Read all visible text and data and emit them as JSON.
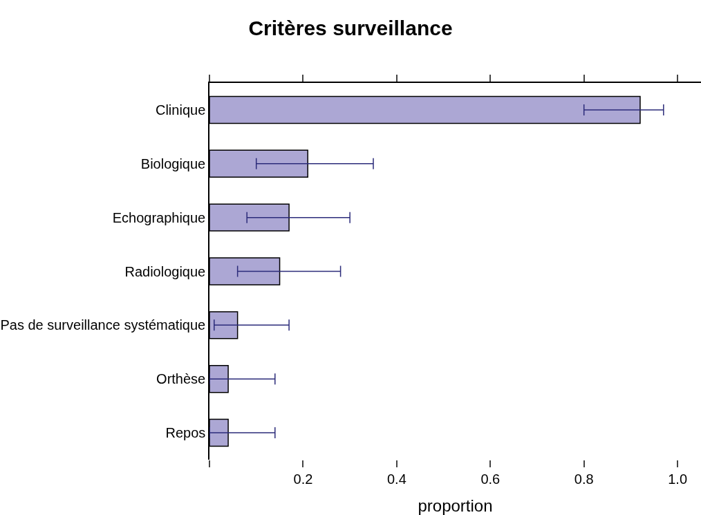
{
  "chart_data": {
    "type": "bar",
    "orientation": "horizontal",
    "title": "Critères surveillance",
    "xlabel": "proportion",
    "categories": [
      "Clinique",
      "Biologique",
      "Echographique",
      "Radiologique",
      "Pas de surveillance systématique",
      "Orthèse",
      "Repos"
    ],
    "values": [
      0.92,
      0.21,
      0.17,
      0.15,
      0.06,
      0.04,
      0.04
    ],
    "errors": [
      [
        0.8,
        0.97
      ],
      [
        0.1,
        0.35
      ],
      [
        0.08,
        0.3
      ],
      [
        0.06,
        0.28
      ],
      [
        0.01,
        0.17
      ],
      [
        0.0,
        0.14
      ],
      [
        0.0,
        0.14
      ]
    ],
    "color": "#aca7d4",
    "xlim": [
      0,
      1.05
    ],
    "xticks": [
      {
        "value": 0,
        "label": null
      },
      0.2,
      0.4,
      0.6,
      0.8,
      {
        "value": 1.0,
        "label": "1.0"
      }
    ],
    "legend": false
  }
}
